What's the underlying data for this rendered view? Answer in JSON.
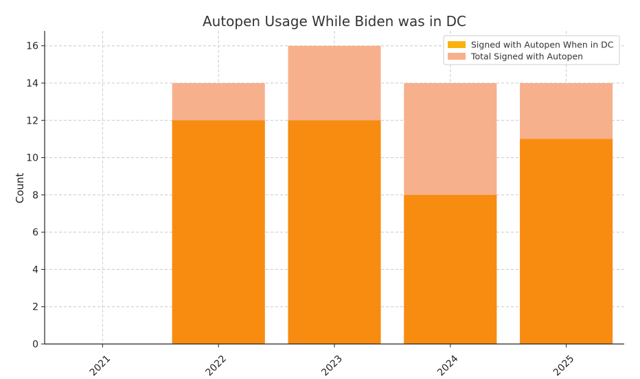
{
  "chart_data": {
    "type": "bar",
    "title": "Autopen Usage While Biden was in DC",
    "xlabel": "",
    "ylabel": "Count",
    "categories": [
      "2021",
      "2022",
      "2023",
      "2024",
      "2025"
    ],
    "series": [
      {
        "name": "Total Signed with Autopen",
        "values": [
          0,
          14,
          16,
          14,
          14
        ],
        "color": "#f7b08c"
      },
      {
        "name": "Signed with Autopen When in DC",
        "values": [
          0,
          12,
          12,
          8,
          11
        ],
        "color": "#f78c10"
      }
    ],
    "legend_order": [
      "Signed with Autopen When in DC",
      "Total Signed with Autopen"
    ],
    "legend_swatch_colors": {
      "Signed with Autopen When in DC": "#fbb10f",
      "Total Signed with Autopen": "#f7b08c"
    },
    "ylim": [
      0,
      16.8
    ],
    "yticks": [
      0,
      2,
      4,
      6,
      8,
      10,
      12,
      14,
      16
    ],
    "grid": true,
    "legend_position": "top-right",
    "x_tick_rotation": -45
  }
}
